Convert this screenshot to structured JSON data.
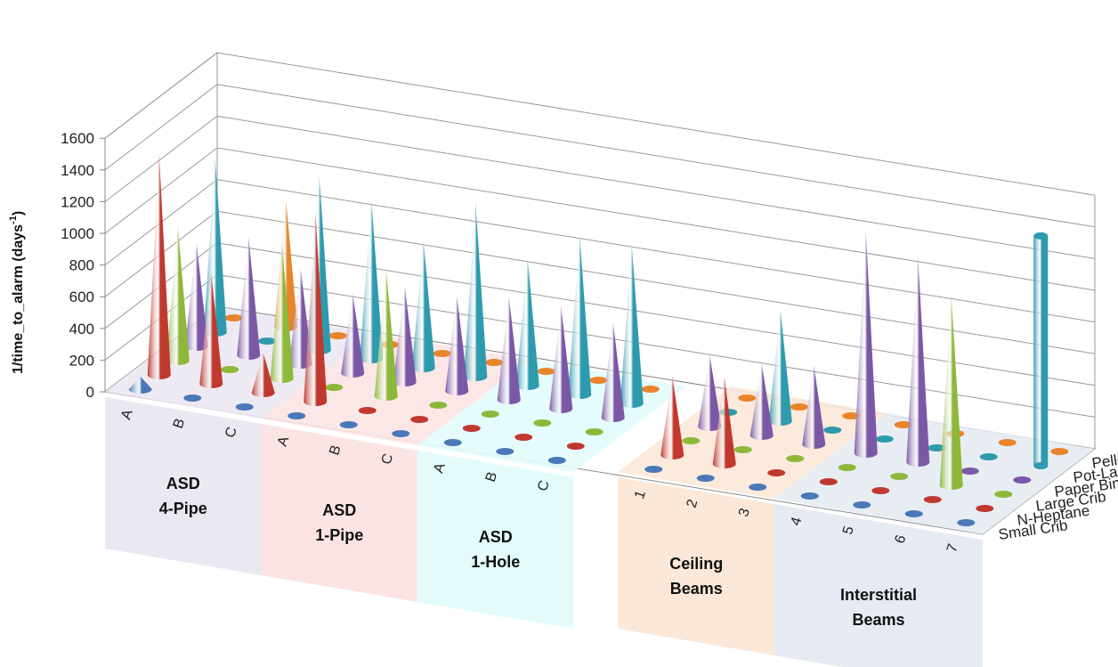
{
  "chart_data": {
    "type": "bar",
    "shape": "cone",
    "ylabel": "1/time_to_alarm (days",
    "ylabel_sup": "-1",
    "ylabel_tail": ")",
    "ylim": [
      0,
      1600
    ],
    "yticks": [
      0,
      200,
      400,
      600,
      800,
      1000,
      1200,
      1400,
      1600
    ],
    "categories": [
      "A",
      "B",
      "C",
      "A",
      "B",
      "C",
      "A",
      "B",
      "C",
      "1",
      "2",
      "3",
      "4",
      "5",
      "6",
      "7"
    ],
    "groups": [
      {
        "label": [
          "ASD",
          "4-Pipe"
        ],
        "color": "#ece8f2"
      },
      {
        "label": [
          "ASD",
          "1-Pipe"
        ],
        "color": "#fce4e4"
      },
      {
        "label": [
          "ASD",
          "1-Hole"
        ],
        "color": "#e3fbfb"
      },
      {
        "label": [
          "Ceiling",
          "Beams"
        ],
        "color": "#fce8d8"
      },
      {
        "label": [
          "Interstitial",
          "Beams"
        ],
        "color": "#e6ebf3"
      }
    ],
    "series": [
      {
        "name": "Small Crib",
        "color": "#4a78b8",
        "values": [
          80,
          0,
          0,
          0,
          0,
          0,
          0,
          0,
          0,
          0,
          0,
          0,
          0,
          0,
          0,
          0
        ]
      },
      {
        "name": "N-Heptane",
        "color": "#c0392f",
        "values": [
          1400,
          700,
          250,
          1200,
          0,
          0,
          0,
          0,
          0,
          500,
          550,
          0,
          0,
          0,
          0,
          0
        ]
      },
      {
        "name": "Large Crib",
        "color": "#8db83a",
        "values": [
          850,
          0,
          850,
          0,
          800,
          0,
          0,
          0,
          0,
          0,
          0,
          0,
          0,
          0,
          1200,
          0
        ]
      },
      {
        "name": "Paper Bin",
        "color": "#7b58a6",
        "values": [
          650,
          750,
          600,
          500,
          600,
          600,
          650,
          650,
          600,
          450,
          450,
          500,
          1400,
          1300,
          0,
          0
        ]
      },
      {
        "name": "Pot-Lactose",
        "color": "#2e9aad",
        "values": [
          1100,
          0,
          1100,
          1000,
          800,
          1100,
          800,
          1000,
          1000,
          0,
          700,
          0,
          0,
          0,
          0,
          1450
        ]
      },
      {
        "name": "Pellet+ Gas",
        "color": "#e8852a",
        "values": [
          0,
          800,
          0,
          0,
          0,
          0,
          0,
          0,
          0,
          0,
          0,
          0,
          0,
          0,
          0,
          0
        ]
      }
    ]
  }
}
